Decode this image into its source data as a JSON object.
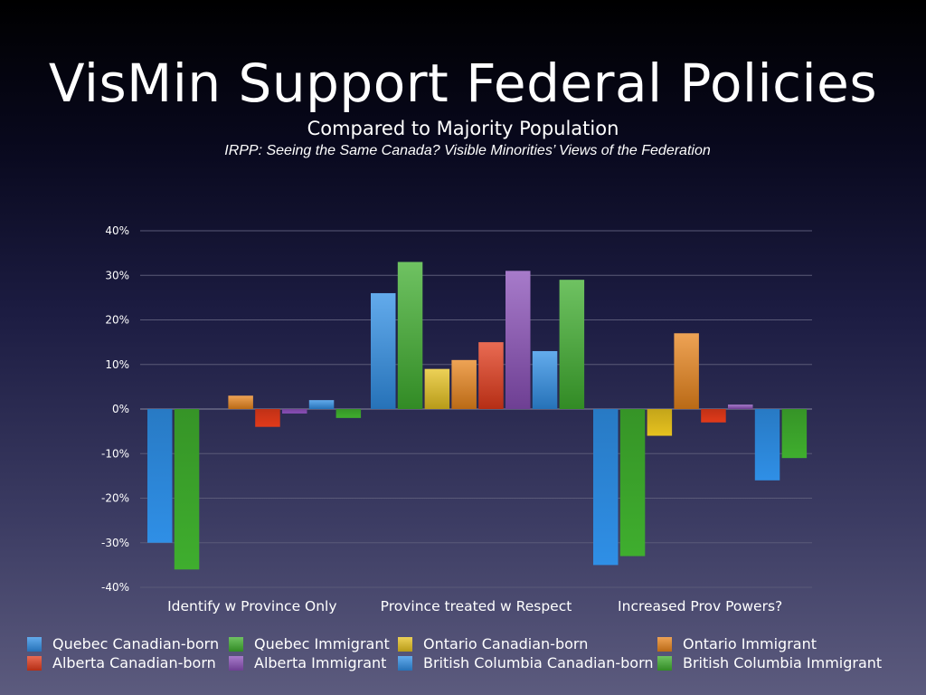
{
  "slide": {
    "title": "VisMin Support Federal Policies",
    "subtitle": "Compared to Majority Population",
    "source": "IRPP: Seeing the Same Canada? Visible Minorities’ Views of the Federation"
  },
  "chart_data": {
    "type": "bar",
    "categories": [
      "Identify w Province Only",
      "Province treated w Respect",
      "Increased Prov Powers?"
    ],
    "ylim": [
      -40,
      40
    ],
    "yticks": [
      "40%",
      "30%",
      "20%",
      "10%",
      "0%",
      "-10%",
      "-20%",
      "-30%",
      "-40%"
    ],
    "ytick_values": [
      40,
      30,
      20,
      10,
      0,
      -10,
      -20,
      -30,
      -40
    ],
    "xlabel": "",
    "ylabel": "",
    "grid": true,
    "legend_position": "bottom",
    "series": [
      {
        "name": "Quebec Canadian-born",
        "color": "#2f8fe6",
        "values": [
          -30,
          26,
          -35
        ]
      },
      {
        "name": "Quebec Immigrant",
        "color": "#3fae2e",
        "values": [
          -36,
          33,
          -33
        ]
      },
      {
        "name": "Ontario Canadian-born",
        "color": "#e6c21f",
        "values": [
          0,
          9,
          -6
        ]
      },
      {
        "name": "Ontario Immigrant",
        "color": "#e8841c",
        "values": [
          3,
          11,
          17
        ]
      },
      {
        "name": "Alberta Canadian-born",
        "color": "#e23a1a",
        "values": [
          -4,
          15,
          -3
        ]
      },
      {
        "name": "Alberta Immigrant",
        "color": "#8a4fb8",
        "values": [
          -1,
          31,
          1
        ]
      },
      {
        "name": "British Columbia Canadian-born",
        "color": "#2f8fe6",
        "values": [
          2,
          13,
          -16
        ]
      },
      {
        "name": "British Columbia Immigrant",
        "color": "#3fae2e",
        "values": [
          -2,
          29,
          -11
        ]
      }
    ]
  }
}
